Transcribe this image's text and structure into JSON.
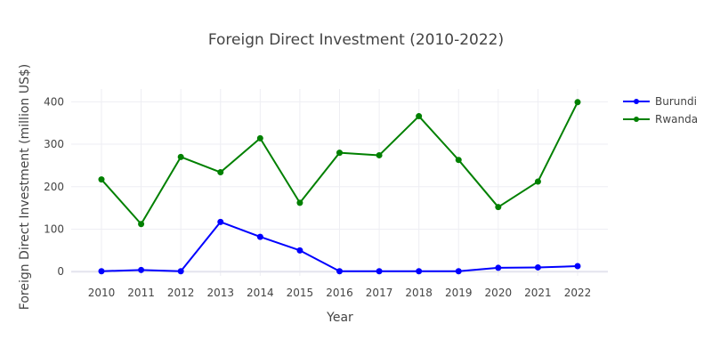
{
  "chart_data": {
    "type": "line",
    "title": "Foreign Direct Investment (2010-2022)",
    "xlabel": "Year",
    "ylabel": "Foreign Direct Investment (million US$)",
    "x": [
      "2010",
      "2011",
      "2012",
      "2013",
      "2014",
      "2015",
      "2016",
      "2017",
      "2018",
      "2019",
      "2020",
      "2021",
      "2022"
    ],
    "ylim": [
      -10,
      430
    ],
    "yticks": [
      0,
      100,
      200,
      300,
      400
    ],
    "grid": true,
    "legend_position": "top-right",
    "series": [
      {
        "name": "Burundi",
        "color": "#0000ff",
        "values": [
          1,
          4,
          1,
          117,
          82,
          50,
          1,
          1,
          1,
          1,
          9,
          10,
          13
        ]
      },
      {
        "name": "Rwanda",
        "color": "#008000",
        "values": [
          217,
          112,
          270,
          234,
          314,
          162,
          280,
          274,
          366,
          263,
          152,
          212,
          399
        ]
      }
    ]
  }
}
